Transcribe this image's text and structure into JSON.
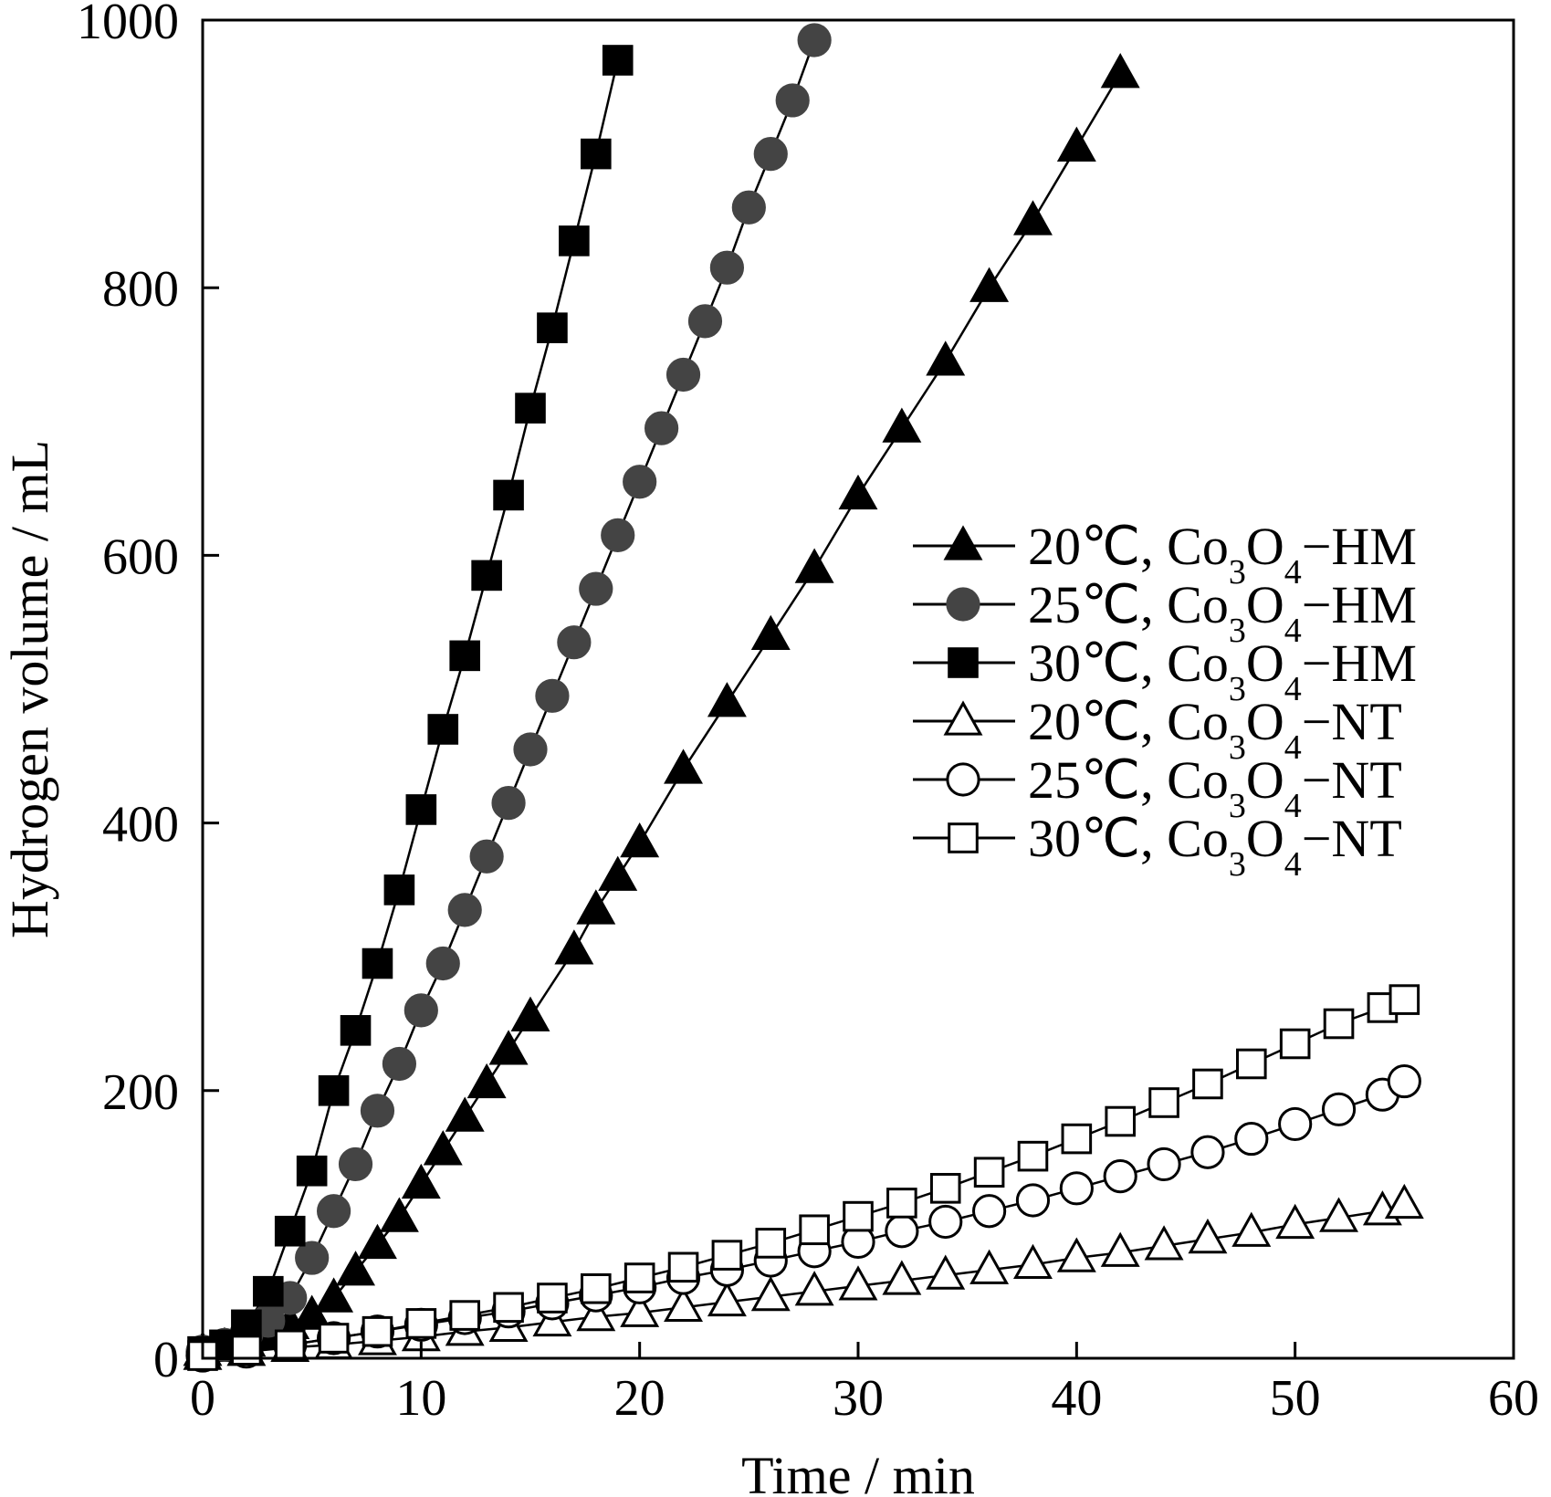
{
  "chart_data": {
    "type": "scatter",
    "title": "",
    "xlabel": "Time / min",
    "ylabel": "Hydrogen volume / mL",
    "xlim": [
      0,
      60
    ],
    "ylim": [
      0,
      1000
    ],
    "xticks": [
      0,
      10,
      20,
      30,
      40,
      50,
      60
    ],
    "yticks": [
      0,
      200,
      400,
      600,
      800,
      1000
    ],
    "grid": false,
    "legend_position": "right-middle",
    "series": [
      {
        "name": "20℃, Co3O4−HM",
        "temp": "20℃",
        "material": "HM",
        "marker": "triangle",
        "filled": true,
        "color": "#000000",
        "x": [
          0,
          1,
          2,
          3,
          4,
          5,
          6,
          7,
          8,
          9,
          10,
          11,
          12,
          13,
          14,
          15,
          17,
          18,
          19,
          20,
          22,
          24,
          26,
          28,
          30,
          32,
          34,
          36,
          38,
          40,
          42
        ],
        "y": [
          5,
          8,
          12,
          18,
          25,
          32,
          45,
          65,
          85,
          105,
          130,
          155,
          180,
          205,
          230,
          255,
          305,
          335,
          360,
          385,
          440,
          490,
          540,
          590,
          645,
          695,
          745,
          800,
          850,
          905,
          960
        ]
      },
      {
        "name": "25℃, Co3O4−HM",
        "temp": "25℃",
        "material": "HM",
        "marker": "circle",
        "filled": true,
        "color": "#444444",
        "x": [
          0,
          1,
          2,
          3,
          4,
          5,
          6,
          7,
          8,
          9,
          10,
          11,
          12,
          13,
          14,
          15,
          16,
          17,
          18,
          19,
          20,
          21,
          22,
          23,
          24,
          25,
          26,
          27,
          28
        ],
        "y": [
          5,
          10,
          18,
          28,
          45,
          75,
          110,
          145,
          185,
          220,
          260,
          295,
          335,
          375,
          415,
          455,
          495,
          535,
          575,
          615,
          655,
          695,
          735,
          775,
          815,
          860,
          900,
          940,
          985
        ]
      },
      {
        "name": "30℃, Co3O4−HM",
        "temp": "30℃",
        "material": "HM",
        "marker": "square",
        "filled": true,
        "color": "#000000",
        "x": [
          0,
          1,
          2,
          3,
          4,
          5,
          6,
          7,
          8,
          9,
          10,
          11,
          12,
          13,
          14,
          15,
          16,
          17,
          18,
          19
        ],
        "y": [
          5,
          10,
          25,
          50,
          95,
          140,
          200,
          245,
          295,
          350,
          410,
          470,
          525,
          585,
          645,
          710,
          770,
          835,
          900,
          970
        ]
      },
      {
        "name": "20℃, Co3O4−NT",
        "temp": "20℃",
        "material": "NT",
        "marker": "triangle",
        "filled": false,
        "color": "#000000",
        "x": [
          0,
          2,
          4,
          6,
          8,
          10,
          12,
          14,
          16,
          18,
          20,
          22,
          24,
          26,
          28,
          30,
          32,
          34,
          36,
          38,
          40,
          42,
          44,
          46,
          48,
          50,
          52,
          54,
          55
        ],
        "y": [
          2,
          5,
          8,
          10,
          13,
          16,
          20,
          23,
          27,
          31,
          34,
          38,
          42,
          46,
          50,
          54,
          58,
          62,
          66,
          70,
          75,
          79,
          84,
          89,
          94,
          100,
          105,
          110,
          115
        ]
      },
      {
        "name": "25℃, Co3O4−NT",
        "temp": "25℃",
        "material": "NT",
        "marker": "circle",
        "filled": false,
        "color": "#000000",
        "x": [
          0,
          2,
          4,
          6,
          8,
          10,
          12,
          14,
          16,
          18,
          20,
          22,
          24,
          26,
          28,
          30,
          32,
          34,
          36,
          38,
          40,
          42,
          44,
          46,
          48,
          50,
          52,
          54,
          55
        ],
        "y": [
          2,
          5,
          10,
          15,
          20,
          25,
          30,
          35,
          41,
          47,
          53,
          60,
          66,
          73,
          80,
          87,
          95,
          102,
          110,
          118,
          127,
          136,
          145,
          154,
          164,
          175,
          186,
          197,
          207
        ]
      },
      {
        "name": "30℃, Co3O4−NT",
        "temp": "30℃",
        "material": "NT",
        "marker": "square",
        "filled": false,
        "color": "#000000",
        "x": [
          0,
          2,
          4,
          6,
          8,
          10,
          12,
          14,
          16,
          18,
          20,
          22,
          24,
          26,
          28,
          30,
          32,
          34,
          36,
          38,
          40,
          42,
          44,
          46,
          48,
          50,
          52,
          54,
          55
        ],
        "y": [
          2,
          6,
          10,
          15,
          20,
          26,
          32,
          38,
          45,
          52,
          60,
          68,
          77,
          86,
          96,
          106,
          116,
          127,
          139,
          151,
          164,
          177,
          191,
          205,
          220,
          235,
          250,
          262,
          268
        ]
      }
    ]
  }
}
